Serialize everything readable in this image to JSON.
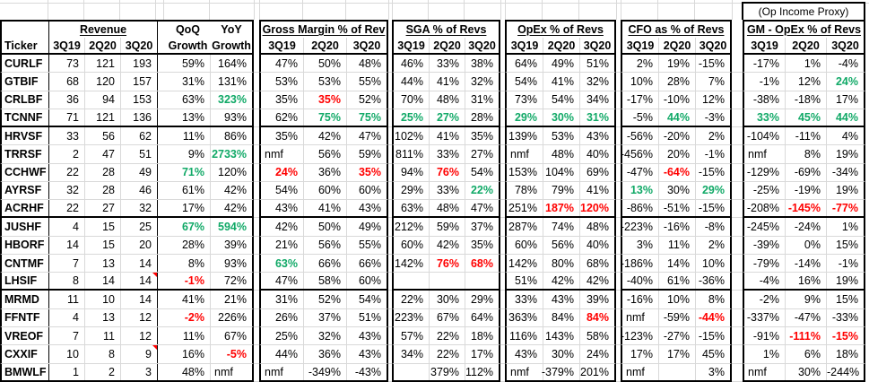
{
  "sheet": {
    "op_income_proxy_label": "(Op Income Proxy)",
    "ticker_header": "Ticker",
    "groups": {
      "rev": {
        "title": "Revenue",
        "cols": [
          "3Q19",
          "2Q20",
          "3Q20"
        ]
      },
      "qoq": {
        "title": "QoQ",
        "col": "Growth"
      },
      "yoy": {
        "title": "YoY",
        "col": "Growth"
      },
      "gm": {
        "title": "Gross Margin % of Rev",
        "cols": [
          "3Q19",
          "2Q20",
          "3Q20"
        ]
      },
      "sga": {
        "title": "SGA % of Revs",
        "cols": [
          "3Q19",
          "2Q20",
          "3Q20"
        ]
      },
      "opex": {
        "title": "OpEx % of Revs",
        "cols": [
          "3Q19",
          "2Q20",
          "3Q20"
        ]
      },
      "cfo": {
        "title": "CFO as % of Revs",
        "cols": [
          "3Q19",
          "2Q20",
          "3Q20"
        ]
      },
      "gmopex": {
        "title": "GM - OpEx % of Revs",
        "cols": [
          "3Q19",
          "2Q20",
          "3Q20"
        ]
      }
    },
    "colors": {
      "positive_text": "#11a967",
      "negative_text": "#ff0000",
      "gridline": "#d9d9d9",
      "border": "#000000"
    },
    "rows": [
      {
        "ticker": "CURLF",
        "rev": [
          "73",
          "121",
          "193"
        ],
        "qoq": "59%",
        "yoy": "164%",
        "gm": [
          "47%",
          "50%",
          "48%"
        ],
        "sga": [
          "46%",
          "33%",
          "38%"
        ],
        "opex": [
          "64%",
          "49%",
          "51%"
        ],
        "cfo": [
          "2%",
          "19%",
          "-15%"
        ],
        "gmopex": [
          "-17%",
          "1%",
          "-4%"
        ]
      },
      {
        "ticker": "GTBIF",
        "rev": [
          "68",
          "120",
          "157"
        ],
        "qoq": "31%",
        "yoy": "131%",
        "gm": [
          "53%",
          "53%",
          "55%"
        ],
        "sga": [
          "44%",
          "41%",
          "32%"
        ],
        "opex": [
          "54%",
          "41%",
          "32%"
        ],
        "cfo": [
          "10%",
          "28%",
          "7%"
        ],
        "gmopex": [
          "-1%",
          "12%",
          {
            "v": "24%",
            "s": "g"
          }
        ]
      },
      {
        "ticker": "CRLBF",
        "rev": [
          "36",
          "94",
          "153"
        ],
        "qoq": "63%",
        "yoy": {
          "v": "323%",
          "s": "g"
        },
        "gm": [
          "35%",
          {
            "v": "35%",
            "s": "r"
          },
          "52%"
        ],
        "sga": [
          "70%",
          "48%",
          "31%"
        ],
        "opex": [
          "73%",
          "54%",
          "34%"
        ],
        "cfo": [
          "-17%",
          "-10%",
          "12%"
        ],
        "gmopex": [
          "-38%",
          "-18%",
          "17%"
        ]
      },
      {
        "ticker": "TCNNF",
        "rev": [
          "71",
          "121",
          "136"
        ],
        "qoq": "13%",
        "yoy": "93%",
        "gm": [
          "62%",
          {
            "v": "75%",
            "s": "g"
          },
          {
            "v": "75%",
            "s": "g"
          }
        ],
        "sga": [
          {
            "v": "25%",
            "s": "g"
          },
          {
            "v": "27%",
            "s": "g"
          },
          "28%"
        ],
        "opex": [
          {
            "v": "29%",
            "s": "g"
          },
          {
            "v": "30%",
            "s": "g"
          },
          {
            "v": "31%",
            "s": "g"
          }
        ],
        "cfo": [
          "-5%",
          {
            "v": "44%",
            "s": "g"
          },
          "-3%"
        ],
        "gmopex": [
          {
            "v": "33%",
            "s": "g"
          },
          {
            "v": "45%",
            "s": "g"
          },
          {
            "v": "44%",
            "s": "g"
          }
        ],
        "sep_after": true
      },
      {
        "ticker": "HRVSF",
        "rev": [
          "33",
          "56",
          "62"
        ],
        "qoq": "11%",
        "yoy": "86%",
        "gm": [
          "35%",
          "42%",
          "47%"
        ],
        "sga": [
          "102%",
          "41%",
          "35%"
        ],
        "opex": [
          "139%",
          "53%",
          "43%"
        ],
        "cfo": [
          "-56%",
          "-20%",
          "2%"
        ],
        "gmopex": [
          "-104%",
          "-11%",
          "4%"
        ]
      },
      {
        "ticker": "TRRSF",
        "rev": [
          "2",
          "47",
          "51"
        ],
        "qoq": "9%",
        "yoy": {
          "v": "2733%",
          "s": "g"
        },
        "gm": [
          "nmf",
          "56%",
          "59%"
        ],
        "sga": [
          "811%",
          "33%",
          "27%"
        ],
        "opex": [
          "nmf",
          "48%",
          "40%"
        ],
        "cfo": [
          "-456%",
          "20%",
          "-1%"
        ],
        "gmopex": [
          "nmf",
          "8%",
          "19%"
        ]
      },
      {
        "ticker": "CCHWF",
        "rev": [
          "22",
          "28",
          "49"
        ],
        "qoq": {
          "v": "71%",
          "s": "g"
        },
        "yoy": "120%",
        "gm": [
          {
            "v": "24%",
            "s": "r"
          },
          "36%",
          {
            "v": "35%",
            "s": "r"
          }
        ],
        "sga": [
          "94%",
          {
            "v": "76%",
            "s": "r"
          },
          "54%"
        ],
        "opex": [
          "153%",
          "104%",
          "69%"
        ],
        "cfo": [
          "-47%",
          {
            "v": "-64%",
            "s": "r"
          },
          "-15%"
        ],
        "gmopex": [
          "-129%",
          "-69%",
          "-34%"
        ]
      },
      {
        "ticker": "AYRSF",
        "rev": [
          "32",
          "28",
          "46"
        ],
        "qoq": "61%",
        "yoy": "42%",
        "gm": [
          "54%",
          "60%",
          "60%"
        ],
        "sga": [
          "29%",
          "33%",
          {
            "v": "22%",
            "s": "g"
          }
        ],
        "opex": [
          "78%",
          "79%",
          "41%"
        ],
        "cfo": [
          {
            "v": "13%",
            "s": "g"
          },
          "30%",
          {
            "v": "29%",
            "s": "g"
          }
        ],
        "gmopex": [
          "-25%",
          "-19%",
          "19%"
        ]
      },
      {
        "ticker": "ACRHF",
        "rev": [
          "22",
          "27",
          "32"
        ],
        "qoq": "17%",
        "yoy": "42%",
        "gm": [
          "43%",
          "41%",
          "43%"
        ],
        "sga": [
          "63%",
          "48%",
          "47%"
        ],
        "opex": [
          "251%",
          {
            "v": "187%",
            "s": "r"
          },
          {
            "v": "120%",
            "s": "r"
          }
        ],
        "cfo": [
          "-86%",
          "-51%",
          "-15%"
        ],
        "gmopex": [
          "-208%",
          {
            "v": "-145%",
            "s": "r"
          },
          {
            "v": "-77%",
            "s": "r"
          }
        ],
        "sep_after": true
      },
      {
        "ticker": "JUSHF",
        "rev": [
          "4",
          "15",
          "25"
        ],
        "qoq": {
          "v": "67%",
          "s": "g"
        },
        "yoy": {
          "v": "594%",
          "s": "g"
        },
        "gm": [
          "42%",
          "50%",
          "49%"
        ],
        "sga": [
          "212%",
          "59%",
          "37%"
        ],
        "opex": [
          "287%",
          "74%",
          "48%"
        ],
        "cfo": [
          "-223%",
          "-16%",
          "-8%"
        ],
        "gmopex": [
          "-245%",
          "-24%",
          "1%"
        ]
      },
      {
        "ticker": "HBORF",
        "rev": [
          "14",
          "15",
          "20"
        ],
        "qoq": "28%",
        "yoy": "39%",
        "gm": [
          "21%",
          "56%",
          "55%"
        ],
        "sga": [
          "60%",
          "42%",
          "35%"
        ],
        "opex": [
          "60%",
          "56%",
          "40%"
        ],
        "cfo": [
          "3%",
          "11%",
          "2%"
        ],
        "gmopex": [
          "-39%",
          "0%",
          "15%"
        ]
      },
      {
        "ticker": "CNTMF",
        "rev": [
          "7",
          "13",
          "14"
        ],
        "qoq": "8%",
        "yoy": "93%",
        "gm": [
          {
            "v": "63%",
            "s": "g"
          },
          "66%",
          "66%"
        ],
        "sga": [
          "142%",
          {
            "v": "76%",
            "s": "r"
          },
          {
            "v": "68%",
            "s": "r"
          }
        ],
        "opex": [
          "142%",
          "80%",
          "68%"
        ],
        "cfo": [
          "-186%",
          "14%",
          "10%"
        ],
        "gmopex": [
          "-79%",
          "-14%",
          "-1%"
        ]
      },
      {
        "ticker": "LHSIF",
        "rev": [
          "8",
          "14",
          {
            "v": "14",
            "note": true
          }
        ],
        "qoq": {
          "v": "-1%",
          "s": "r"
        },
        "yoy": "72%",
        "gm": [
          "47%",
          "58%",
          "60%"
        ],
        "sga": [
          "",
          "",
          ""
        ],
        "opex": [
          "51%",
          "42%",
          "42%"
        ],
        "cfo": [
          "-40%",
          "61%",
          "-36%"
        ],
        "gmopex": [
          "-4%",
          "16%",
          "19%"
        ],
        "sep_after": true
      },
      {
        "ticker": "MRMD",
        "rev": [
          "11",
          "10",
          "14"
        ],
        "qoq": "41%",
        "yoy": "21%",
        "gm": [
          "31%",
          "52%",
          "54%"
        ],
        "sga": [
          "22%",
          "30%",
          "29%"
        ],
        "opex": [
          "33%",
          "43%",
          "39%"
        ],
        "cfo": [
          "-16%",
          "10%",
          "8%"
        ],
        "gmopex": [
          "-2%",
          "9%",
          "15%"
        ]
      },
      {
        "ticker": "FFNTF",
        "rev": [
          "4",
          "13",
          "12"
        ],
        "qoq": {
          "v": "-2%",
          "s": "r"
        },
        "yoy": "226%",
        "gm": [
          "26%",
          "37%",
          "51%"
        ],
        "sga": [
          "223%",
          "67%",
          "64%"
        ],
        "opex": [
          "363%",
          "84%",
          {
            "v": "84%",
            "s": "r"
          }
        ],
        "cfo": [
          "nmf",
          "-59%",
          {
            "v": "-44%",
            "s": "r"
          }
        ],
        "gmopex": [
          "-337%",
          "-47%",
          "-33%"
        ]
      },
      {
        "ticker": "VREOF",
        "rev": [
          "7",
          "11",
          "12"
        ],
        "qoq": "11%",
        "yoy": "67%",
        "gm": [
          "25%",
          "32%",
          "43%"
        ],
        "sga": [
          "57%",
          "22%",
          "18%"
        ],
        "opex": [
          "116%",
          "143%",
          "58%"
        ],
        "cfo": [
          "-123%",
          "-27%",
          "-15%"
        ],
        "gmopex": [
          "-91%",
          {
            "v": "-111%",
            "s": "r"
          },
          {
            "v": "-15%",
            "s": "r"
          }
        ]
      },
      {
        "ticker": "CXXIF",
        "rev": [
          "10",
          "8",
          {
            "v": "9",
            "note": true
          }
        ],
        "qoq": "16%",
        "yoy": {
          "v": "-5%",
          "s": "r"
        },
        "gm": [
          "44%",
          "36%",
          "43%"
        ],
        "sga": [
          "34%",
          "22%",
          "17%"
        ],
        "opex": [
          "43%",
          "30%",
          "24%"
        ],
        "cfo": [
          "17%",
          "17%",
          "45%"
        ],
        "gmopex": [
          "1%",
          "6%",
          "18%"
        ]
      },
      {
        "ticker": "BMWLF",
        "rev": [
          "1",
          "2",
          "3"
        ],
        "qoq": "48%",
        "yoy": "nmf",
        "gm": [
          "nmf",
          "-349%",
          "-43%"
        ],
        "sga": [
          "",
          "379%",
          "112%"
        ],
        "opex": [
          "nmf",
          "-379%",
          "201%"
        ],
        "cfo": [
          "nmf",
          "",
          "3%"
        ],
        "gmopex": [
          "nmf",
          "30%",
          "-244%"
        ]
      }
    ]
  }
}
